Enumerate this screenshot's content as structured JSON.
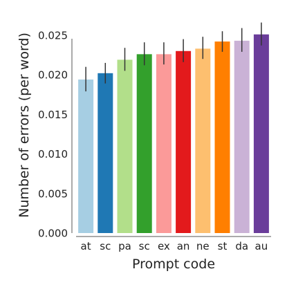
{
  "chart_data": {
    "type": "bar",
    "title": "",
    "xlabel": "Prompt code",
    "ylabel": "Number of errors (per word)",
    "ylim": [
      0,
      0.027
    ],
    "yticks": [
      "0.000",
      "0.005",
      "0.010",
      "0.015",
      "0.020",
      "0.025"
    ],
    "ytick_values": [
      0,
      0.005,
      0.01,
      0.015,
      0.02,
      0.025
    ],
    "categories": [
      "at",
      "sc",
      "pa",
      "sc",
      "ex",
      "an",
      "ne",
      "st",
      "da",
      "au"
    ],
    "values": [
      0.0194,
      0.0202,
      0.0219,
      0.0226,
      0.0226,
      0.023,
      0.0233,
      0.0242,
      0.0243,
      0.0251
    ],
    "error_low": [
      0.0179,
      0.0189,
      0.0205,
      0.0212,
      0.0213,
      0.0216,
      0.022,
      0.0229,
      0.0229,
      0.0237
    ],
    "error_high": [
      0.021,
      0.0215,
      0.0234,
      0.0241,
      0.0241,
      0.0245,
      0.0248,
      0.0255,
      0.0259,
      0.0266
    ],
    "colors": [
      "#a6cee3",
      "#1f78b4",
      "#b2df8a",
      "#33a02c",
      "#fb9a99",
      "#e31a1c",
      "#fdbf6f",
      "#ff7f00",
      "#cab2d6",
      "#6a3d9a"
    ],
    "grid": false,
    "legend": "none"
  }
}
